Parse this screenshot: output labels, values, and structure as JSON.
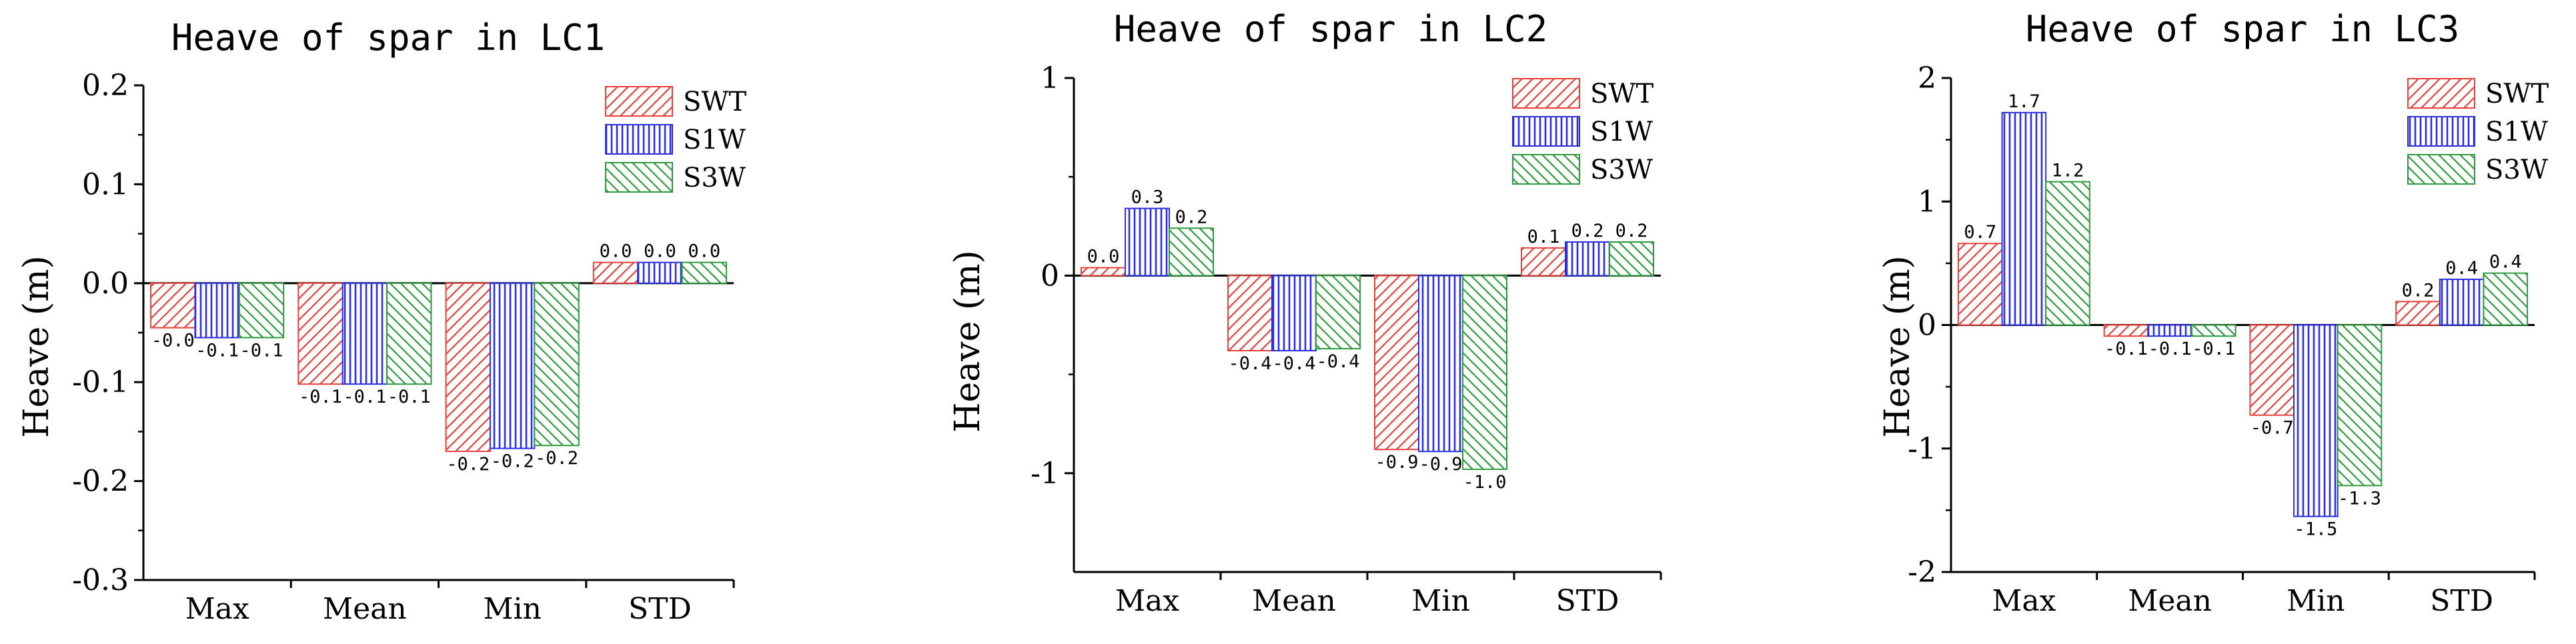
{
  "style": {
    "swt_color": "#e8403a",
    "s1w_color": "#2a2ee0",
    "s3w_color": "#2e9a3e"
  },
  "chart_data": [
    {
      "type": "bar",
      "title": "Heave of spar in LC1",
      "xlabel": "",
      "ylabel": "Heave (m)",
      "ylim": [
        -0.3,
        0.2
      ],
      "yticks": [
        -0.3,
        -0.2,
        -0.1,
        0.0,
        0.1,
        0.2
      ],
      "ytick_labels": [
        "-0.3",
        "-0.2",
        "-0.1",
        "0.0",
        "0.1",
        "0.2"
      ],
      "categories": [
        "Max",
        "Mean",
        "Min",
        "STD"
      ],
      "legend_position": "top-right",
      "series": [
        {
          "name": "SWT",
          "values": [
            -0.045,
            -0.102,
            -0.17,
            0.021
          ],
          "labels": [
            "-0.0",
            "-0.1",
            "-0.2",
            "0.0"
          ]
        },
        {
          "name": "S1W",
          "values": [
            -0.055,
            -0.102,
            -0.167,
            0.021
          ],
          "labels": [
            "-0.1",
            "-0.1",
            "-0.2",
            "0.0"
          ]
        },
        {
          "name": "S3W",
          "values": [
            -0.055,
            -0.102,
            -0.164,
            0.021
          ],
          "labels": [
            "-0.1",
            "-0.1",
            "-0.2",
            "0.0"
          ]
        }
      ]
    },
    {
      "type": "bar",
      "title": "Heave of spar in LC2",
      "xlabel": "",
      "ylabel": "Heave (m)",
      "ylim": [
        -1.5,
        1.0
      ],
      "yticks": [
        -1,
        0,
        1
      ],
      "ytick_labels": [
        "-1",
        "0",
        "1"
      ],
      "categories": [
        "Max",
        "Mean",
        "Min",
        "STD"
      ],
      "legend_position": "top-right",
      "series": [
        {
          "name": "SWT",
          "values": [
            0.04,
            -0.38,
            -0.88,
            0.14
          ],
          "labels": [
            "0.0",
            "-0.4",
            "-0.9",
            "0.1"
          ]
        },
        {
          "name": "S1W",
          "values": [
            0.34,
            -0.38,
            -0.89,
            0.17
          ],
          "labels": [
            "0.3",
            "-0.4",
            "-0.9",
            "0.2"
          ]
        },
        {
          "name": "S3W",
          "values": [
            0.24,
            -0.37,
            -0.98,
            0.17
          ],
          "labels": [
            "0.2",
            "-0.4",
            "-1.0",
            "0.2"
          ]
        }
      ]
    },
    {
      "type": "bar",
      "title": "Heave of spar in LC3",
      "xlabel": "",
      "ylabel": "Heave (m)",
      "ylim": [
        -2,
        2
      ],
      "yticks": [
        -2,
        -1,
        0,
        1,
        2
      ],
      "ytick_labels": [
        "-2",
        "-1",
        "0",
        "1",
        "2"
      ],
      "categories": [
        "Max",
        "Mean",
        "Min",
        "STD"
      ],
      "legend_position": "top-right",
      "series": [
        {
          "name": "SWT",
          "values": [
            0.66,
            -0.09,
            -0.73,
            0.19
          ],
          "labels": [
            "0.7",
            "-0.1",
            "-0.7",
            "0.2"
          ]
        },
        {
          "name": "S1W",
          "values": [
            1.72,
            -0.09,
            -1.55,
            0.37
          ],
          "labels": [
            "1.7",
            "-0.1",
            "-1.5",
            "0.4"
          ]
        },
        {
          "name": "S3W",
          "values": [
            1.16,
            -0.09,
            -1.3,
            0.42
          ],
          "labels": [
            "1.2",
            "-0.1",
            "-1.3",
            "0.4"
          ]
        }
      ]
    }
  ]
}
